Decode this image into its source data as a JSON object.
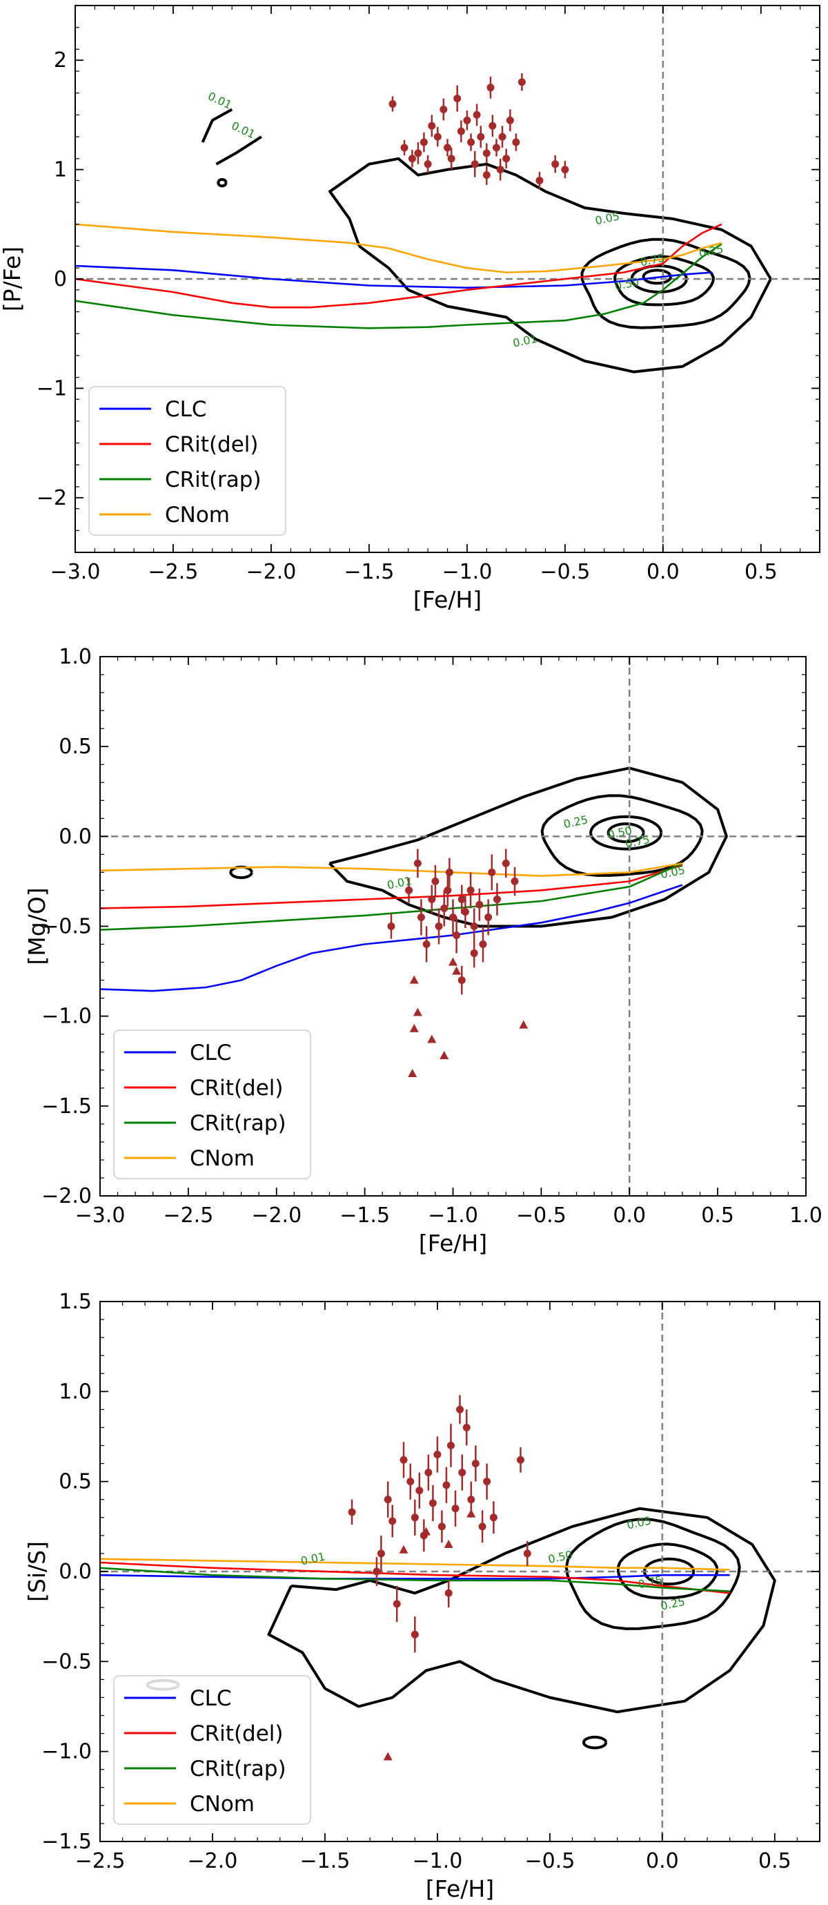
{
  "figure": {
    "panel_count": 3,
    "colors": {
      "CLC": "#0000ff",
      "CRit(del)": "#ff0000",
      "CRit(rap)": "#008000",
      "CNom": "#ffa500",
      "observations": "#a52a2a",
      "contours": "#000000",
      "reference_lines": "#808080",
      "contour_labels": "#1a8a1a"
    }
  },
  "chart_data": [
    {
      "type": "line",
      "title": "",
      "xlabel": "[Fe/H]",
      "ylabel": "[P/Fe]",
      "xlim": [
        -3.0,
        0.8
      ],
      "ylim": [
        -2.5,
        2.5
      ],
      "xticks": [
        -3.0,
        -2.5,
        -2.0,
        -1.5,
        -1.0,
        -0.5,
        0.0,
        0.5
      ],
      "xtick_labels": [
        "−3.0",
        "−2.5",
        "−2.0",
        "−1.5",
        "−1.0",
        "−0.5",
        "0.0",
        "0.5"
      ],
      "yticks": [
        -2,
        -1,
        0,
        1,
        2
      ],
      "ytick_labels": [
        "−2",
        "−1",
        "0",
        "1",
        "2"
      ],
      "reference_lines": {
        "x": 0.0,
        "y": 0.0
      },
      "legend": {
        "position": "lower-left",
        "entries": [
          "CLC",
          "CRit(del)",
          "CRit(rap)",
          "CNom"
        ]
      },
      "series": [
        {
          "name": "CLC",
          "x": [
            -3.0,
            -2.5,
            -2.0,
            -1.5,
            -1.0,
            -0.5,
            -0.2,
            0.0,
            0.1,
            0.25
          ],
          "y": [
            0.12,
            0.08,
            0.0,
            -0.06,
            -0.08,
            -0.06,
            -0.02,
            0.02,
            0.04,
            0.06
          ]
        },
        {
          "name": "CRit(del)",
          "x": [
            -3.0,
            -2.5,
            -2.2,
            -2.0,
            -1.8,
            -1.5,
            -1.2,
            -1.0,
            -0.5,
            -0.2,
            0.0,
            0.1,
            0.2,
            0.3
          ],
          "y": [
            0.0,
            -0.12,
            -0.22,
            -0.26,
            -0.26,
            -0.22,
            -0.15,
            -0.1,
            0.0,
            0.06,
            0.14,
            0.3,
            0.42,
            0.5
          ]
        },
        {
          "name": "CRit(rap)",
          "x": [
            -3.0,
            -2.5,
            -2.0,
            -1.5,
            -1.2,
            -1.0,
            -0.5,
            -0.3,
            -0.1,
            0.0,
            0.1,
            0.2,
            0.3
          ],
          "y": [
            -0.2,
            -0.33,
            -0.42,
            -0.45,
            -0.44,
            -0.42,
            -0.38,
            -0.32,
            -0.22,
            -0.1,
            0.05,
            0.2,
            0.32
          ]
        },
        {
          "name": "CNom",
          "x": [
            -3.0,
            -2.5,
            -2.0,
            -1.6,
            -1.4,
            -1.2,
            -1.0,
            -0.8,
            -0.6,
            -0.3,
            -0.1,
            0.0,
            0.1,
            0.2,
            0.3
          ],
          "y": [
            0.5,
            0.43,
            0.38,
            0.33,
            0.28,
            0.18,
            0.1,
            0.06,
            0.07,
            0.12,
            0.16,
            0.18,
            0.22,
            0.28,
            0.33
          ]
        }
      ],
      "observations": [
        {
          "x": -1.38,
          "y": 1.6,
          "err": 0.07
        },
        {
          "x": -1.25,
          "y": 1.15,
          "err": 0.1
        },
        {
          "x": -1.22,
          "y": 1.25,
          "err": 0.09
        },
        {
          "x": -1.2,
          "y": 1.05,
          "err": 0.08
        },
        {
          "x": -1.18,
          "y": 1.4,
          "err": 0.1
        },
        {
          "x": -1.15,
          "y": 1.3,
          "err": 0.09
        },
        {
          "x": -1.12,
          "y": 1.55,
          "err": 0.1
        },
        {
          "x": -1.1,
          "y": 1.2,
          "err": 0.08
        },
        {
          "x": -1.08,
          "y": 1.1,
          "err": 0.1
        },
        {
          "x": -1.05,
          "y": 1.65,
          "err": 0.12
        },
        {
          "x": -1.03,
          "y": 1.35,
          "err": 0.1
        },
        {
          "x": -1.0,
          "y": 1.45,
          "err": 0.09
        },
        {
          "x": -0.98,
          "y": 1.25,
          "err": 0.08
        },
        {
          "x": -0.96,
          "y": 1.05,
          "err": 0.12
        },
        {
          "x": -0.95,
          "y": 1.5,
          "err": 0.1
        },
        {
          "x": -0.93,
          "y": 1.3,
          "err": 0.1
        },
        {
          "x": -0.9,
          "y": 1.15,
          "err": 0.09
        },
        {
          "x": -0.88,
          "y": 1.75,
          "err": 0.1
        },
        {
          "x": -0.87,
          "y": 1.4,
          "err": 0.1
        },
        {
          "x": -0.85,
          "y": 1.2,
          "err": 0.08
        },
        {
          "x": -0.83,
          "y": 1.0,
          "err": 0.1
        },
        {
          "x": -0.82,
          "y": 1.3,
          "err": 0.1
        },
        {
          "x": -0.8,
          "y": 1.1,
          "err": 0.09
        },
        {
          "x": -0.78,
          "y": 1.45,
          "err": 0.1
        },
        {
          "x": -0.75,
          "y": 1.25,
          "err": 0.08
        },
        {
          "x": -0.72,
          "y": 1.8,
          "err": 0.08
        },
        {
          "x": -0.63,
          "y": 0.9,
          "err": 0.08
        },
        {
          "x": -0.55,
          "y": 1.05,
          "err": 0.08
        },
        {
          "x": -0.5,
          "y": 1.0,
          "err": 0.08
        },
        {
          "x": -1.32,
          "y": 1.2,
          "err": 0.07
        },
        {
          "x": -1.28,
          "y": 1.1,
          "err": 0.08
        },
        {
          "x": -0.9,
          "y": 0.95,
          "err": 0.09
        }
      ],
      "contour_level_labels": [
        "0.01",
        "0.01",
        "0.05",
        "0.25",
        "0.75",
        "0.50",
        "0.01"
      ]
    },
    {
      "type": "line",
      "title": "",
      "xlabel": "[Fe/H]",
      "ylabel": "[Mg/O]",
      "xlim": [
        -3.0,
        1.0
      ],
      "ylim": [
        -2.0,
        1.0
      ],
      "xticks": [
        -3.0,
        -2.5,
        -2.0,
        -1.5,
        -1.0,
        -0.5,
        0.0,
        0.5,
        1.0
      ],
      "xtick_labels": [
        "−3.0",
        "−2.5",
        "−2.0",
        "−1.5",
        "−1.0",
        "−0.5",
        "0.0",
        "0.5",
        "1.0"
      ],
      "yticks": [
        -2.0,
        -1.5,
        -1.0,
        -0.5,
        0.0,
        0.5,
        1.0
      ],
      "ytick_labels": [
        "−2.0",
        "−1.5",
        "−1.0",
        "−0.5",
        "0.0",
        "0.5",
        "1.0"
      ],
      "reference_lines": {
        "x": 0.0,
        "y": 0.0
      },
      "legend": {
        "position": "lower-left",
        "entries": [
          "CLC",
          "CRit(del)",
          "CRit(rap)",
          "CNom"
        ]
      },
      "series": [
        {
          "name": "CLC",
          "x": [
            -3.0,
            -2.7,
            -2.4,
            -2.2,
            -2.0,
            -1.8,
            -1.5,
            -1.2,
            -1.0,
            -0.5,
            -0.2,
            0.0,
            0.3
          ],
          "y": [
            -0.85,
            -0.86,
            -0.84,
            -0.8,
            -0.72,
            -0.65,
            -0.6,
            -0.57,
            -0.55,
            -0.48,
            -0.42,
            -0.37,
            -0.27
          ]
        },
        {
          "name": "CRit(del)",
          "x": [
            -3.0,
            -2.5,
            -2.0,
            -1.5,
            -1.0,
            -0.5,
            0.0,
            0.3
          ],
          "y": [
            -0.4,
            -0.39,
            -0.37,
            -0.35,
            -0.33,
            -0.3,
            -0.25,
            -0.16
          ]
        },
        {
          "name": "CRit(rap)",
          "x": [
            -3.0,
            -2.5,
            -2.0,
            -1.5,
            -1.0,
            -0.5,
            0.0,
            0.3
          ],
          "y": [
            -0.52,
            -0.5,
            -0.47,
            -0.44,
            -0.4,
            -0.36,
            -0.28,
            -0.15
          ]
        },
        {
          "name": "CNom",
          "x": [
            -3.0,
            -2.5,
            -2.0,
            -1.5,
            -1.0,
            -0.5,
            0.0,
            0.3
          ],
          "y": [
            -0.19,
            -0.18,
            -0.17,
            -0.18,
            -0.2,
            -0.22,
            -0.2,
            -0.15
          ]
        }
      ],
      "observations": [
        {
          "x": -1.25,
          "y": -0.3,
          "err": 0.07
        },
        {
          "x": -1.2,
          "y": -0.15,
          "err": 0.08
        },
        {
          "x": -1.18,
          "y": -0.45,
          "err": 0.1
        },
        {
          "x": -1.15,
          "y": -0.6,
          "err": 0.1
        },
        {
          "x": -1.12,
          "y": -0.35,
          "err": 0.08
        },
        {
          "x": -1.1,
          "y": -0.25,
          "err": 0.09
        },
        {
          "x": -1.08,
          "y": -0.5,
          "err": 0.1
        },
        {
          "x": -1.05,
          "y": -0.4,
          "err": 0.1
        },
        {
          "x": -1.03,
          "y": -0.3,
          "err": 0.09
        },
        {
          "x": -1.0,
          "y": -0.45,
          "err": 0.1
        },
        {
          "x": -0.98,
          "y": -0.55,
          "err": 0.1
        },
        {
          "x": -0.95,
          "y": -0.35,
          "err": 0.08
        },
        {
          "x": -0.93,
          "y": -0.42,
          "err": 0.09
        },
        {
          "x": -0.9,
          "y": -0.3,
          "err": 0.1
        },
        {
          "x": -0.88,
          "y": -0.5,
          "err": 0.1
        },
        {
          "x": -0.85,
          "y": -0.38,
          "err": 0.09
        },
        {
          "x": -0.83,
          "y": -0.6,
          "err": 0.1
        },
        {
          "x": -0.8,
          "y": -0.45,
          "err": 0.1
        },
        {
          "x": -0.78,
          "y": -0.2,
          "err": 0.1
        },
        {
          "x": -0.75,
          "y": -0.35,
          "err": 0.09
        },
        {
          "x": -0.7,
          "y": -0.15,
          "err": 0.08
        },
        {
          "x": -0.65,
          "y": -0.25,
          "err": 0.08
        },
        {
          "x": -0.95,
          "y": -0.8,
          "err": 0.08
        },
        {
          "x": -0.88,
          "y": -0.65,
          "err": 0.08
        },
        {
          "x": -1.35,
          "y": -0.5,
          "err": 0.07
        },
        {
          "x": -1.02,
          "y": -0.2,
          "err": 0.08
        }
      ],
      "upper_limits": [
        {
          "x": -1.22,
          "y": -0.8
        },
        {
          "x": -1.2,
          "y": -0.98
        },
        {
          "x": -1.22,
          "y": -1.07
        },
        {
          "x": -1.23,
          "y": -1.32
        },
        {
          "x": -1.12,
          "y": -1.13
        },
        {
          "x": -1.05,
          "y": -1.22
        },
        {
          "x": -1.0,
          "y": -0.7
        },
        {
          "x": -0.98,
          "y": -0.75
        },
        {
          "x": -0.6,
          "y": -1.05
        }
      ],
      "contour_level_labels": [
        "0.25",
        "0.50",
        "0.75",
        "0.05",
        "0.01"
      ]
    },
    {
      "type": "line",
      "title": "",
      "xlabel": "[Fe/H]",
      "ylabel": "[Si/S]",
      "xlim": [
        -2.5,
        0.7
      ],
      "ylim": [
        -1.5,
        1.5
      ],
      "xticks": [
        -2.5,
        -2.0,
        -1.5,
        -1.0,
        -0.5,
        0.0,
        0.5
      ],
      "xtick_labels": [
        "−2.5",
        "−2.0",
        "−1.5",
        "−1.0",
        "−0.5",
        "0.0",
        "0.5"
      ],
      "yticks": [
        -1.5,
        -1.0,
        -0.5,
        0.0,
        0.5,
        1.0,
        1.5
      ],
      "ytick_labels": [
        "−1.5",
        "−1.0",
        "−0.5",
        "0.0",
        "0.5",
        "1.0",
        "1.5"
      ],
      "reference_lines": {
        "x": 0.0,
        "y": 0.0
      },
      "legend": {
        "position": "lower-left",
        "entries": [
          "CLC",
          "CRit(del)",
          "CRit(rap)",
          "CNom"
        ]
      },
      "series": [
        {
          "name": "CLC",
          "x": [
            -2.5,
            -2.0,
            -1.5,
            -1.0,
            -0.5,
            -0.2,
            0.0,
            0.3
          ],
          "y": [
            -0.02,
            -0.03,
            -0.04,
            -0.04,
            -0.04,
            -0.03,
            -0.02,
            -0.02
          ]
        },
        {
          "name": "CRit(del)",
          "x": [
            -2.5,
            -2.0,
            -1.5,
            -1.0,
            -0.5,
            -0.2,
            0.0,
            0.3
          ],
          "y": [
            0.05,
            0.02,
            0.0,
            -0.02,
            -0.03,
            -0.05,
            -0.08,
            -0.12
          ]
        },
        {
          "name": "CRit(rap)",
          "x": [
            -2.5,
            -2.0,
            -1.5,
            -1.0,
            -0.5,
            -0.2,
            0.0,
            0.3
          ],
          "y": [
            0.02,
            -0.02,
            -0.04,
            -0.05,
            -0.05,
            -0.07,
            -0.09,
            -0.11
          ]
        },
        {
          "name": "CNom",
          "x": [
            -2.5,
            -2.0,
            -1.5,
            -1.0,
            -0.5,
            -0.2,
            0.0,
            0.3
          ],
          "y": [
            0.07,
            0.06,
            0.05,
            0.04,
            0.03,
            0.02,
            0.02,
            0.01
          ]
        }
      ],
      "observations": [
        {
          "x": -1.38,
          "y": 0.33,
          "err": 0.07
        },
        {
          "x": -1.25,
          "y": 0.1,
          "err": 0.1
        },
        {
          "x": -1.22,
          "y": 0.4,
          "err": 0.1
        },
        {
          "x": -1.2,
          "y": 0.28,
          "err": 0.09
        },
        {
          "x": -1.15,
          "y": 0.62,
          "err": 0.1
        },
        {
          "x": -1.12,
          "y": 0.5,
          "err": 0.1
        },
        {
          "x": -1.1,
          "y": 0.3,
          "err": 0.1
        },
        {
          "x": -1.08,
          "y": 0.45,
          "err": 0.1
        },
        {
          "x": -1.06,
          "y": 0.2,
          "err": 0.09
        },
        {
          "x": -1.04,
          "y": 0.55,
          "err": 0.1
        },
        {
          "x": -1.02,
          "y": 0.38,
          "err": 0.1
        },
        {
          "x": -1.0,
          "y": 0.65,
          "err": 0.1
        },
        {
          "x": -0.98,
          "y": 0.25,
          "err": 0.09
        },
        {
          "x": -0.96,
          "y": 0.48,
          "err": 0.1
        },
        {
          "x": -0.94,
          "y": 0.7,
          "err": 0.12
        },
        {
          "x": -0.92,
          "y": 0.35,
          "err": 0.1
        },
        {
          "x": -0.9,
          "y": 0.9,
          "err": 0.08
        },
        {
          "x": -0.89,
          "y": 0.55,
          "err": 0.1
        },
        {
          "x": -0.87,
          "y": 0.8,
          "err": 0.1
        },
        {
          "x": -0.85,
          "y": 0.4,
          "err": 0.1
        },
        {
          "x": -0.83,
          "y": 0.6,
          "err": 0.1
        },
        {
          "x": -0.8,
          "y": 0.25,
          "err": 0.09
        },
        {
          "x": -0.78,
          "y": 0.5,
          "err": 0.1
        },
        {
          "x": -0.75,
          "y": 0.3,
          "err": 0.09
        },
        {
          "x": -0.63,
          "y": 0.62,
          "err": 0.07
        },
        {
          "x": -0.6,
          "y": 0.1,
          "err": 0.07
        },
        {
          "x": -1.18,
          "y": -0.18,
          "err": 0.1
        },
        {
          "x": -1.1,
          "y": -0.35,
          "err": 0.1
        },
        {
          "x": -0.95,
          "y": -0.12,
          "err": 0.08
        },
        {
          "x": -1.27,
          "y": 0.0,
          "err": 0.08
        }
      ],
      "upper_limits": [
        {
          "x": -1.22,
          "y": -1.03
        },
        {
          "x": -1.15,
          "y": 0.12
        },
        {
          "x": -1.05,
          "y": 0.22
        },
        {
          "x": -0.95,
          "y": 0.15
        },
        {
          "x": -0.85,
          "y": 0.32
        }
      ],
      "contour_level_labels": [
        "0.05",
        "0.50",
        "0.75",
        "0.25",
        "0.01"
      ]
    }
  ]
}
